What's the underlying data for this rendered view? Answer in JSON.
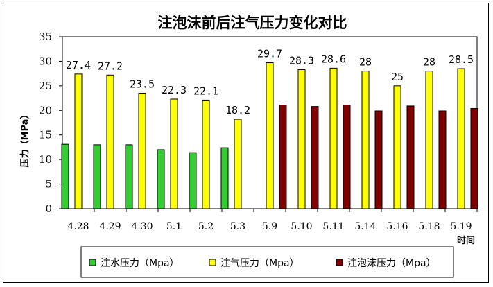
{
  "chart_data": {
    "type": "bar",
    "title": "注泡沫前后注气压力变化对比",
    "xlabel": "时间",
    "ylabel": "压力（MPa）",
    "ylim": [
      0,
      35
    ],
    "yticks": [
      0,
      5,
      10,
      15,
      20,
      25,
      30,
      35
    ],
    "grid": false,
    "legend_position": "bottom",
    "categories": [
      "4.28",
      "4.29",
      "4.30",
      "5.1",
      "5.2",
      "5.3",
      "5.9",
      "5.10",
      "5.11",
      "5.14",
      "5.16",
      "5.18",
      "5.19"
    ],
    "series": [
      {
        "name": "注水压力（Mpa）",
        "color": "#33cc33",
        "values": [
          13.1,
          13.0,
          13.0,
          12.0,
          11.4,
          12.4,
          null,
          null,
          null,
          null,
          null,
          null,
          null
        ]
      },
      {
        "name": "注气压力（Mpa）",
        "color": "#ffff00",
        "values": [
          27.4,
          27.2,
          23.5,
          22.3,
          22.1,
          18.2,
          29.7,
          28.3,
          28.6,
          28,
          25,
          28,
          28.5
        ],
        "data_labels": [
          "27.4",
          "27.2",
          "23.5",
          "22.3",
          "22.1",
          "18.2",
          "29.7",
          "28.3",
          "28.6",
          "28",
          "25",
          "28",
          "28.5"
        ]
      },
      {
        "name": "注泡沫压力（Mpa）",
        "color": "#800000",
        "values": [
          null,
          null,
          null,
          null,
          null,
          null,
          21.1,
          20.8,
          21.1,
          19.9,
          20.9,
          19.9,
          20.4
        ]
      }
    ]
  }
}
